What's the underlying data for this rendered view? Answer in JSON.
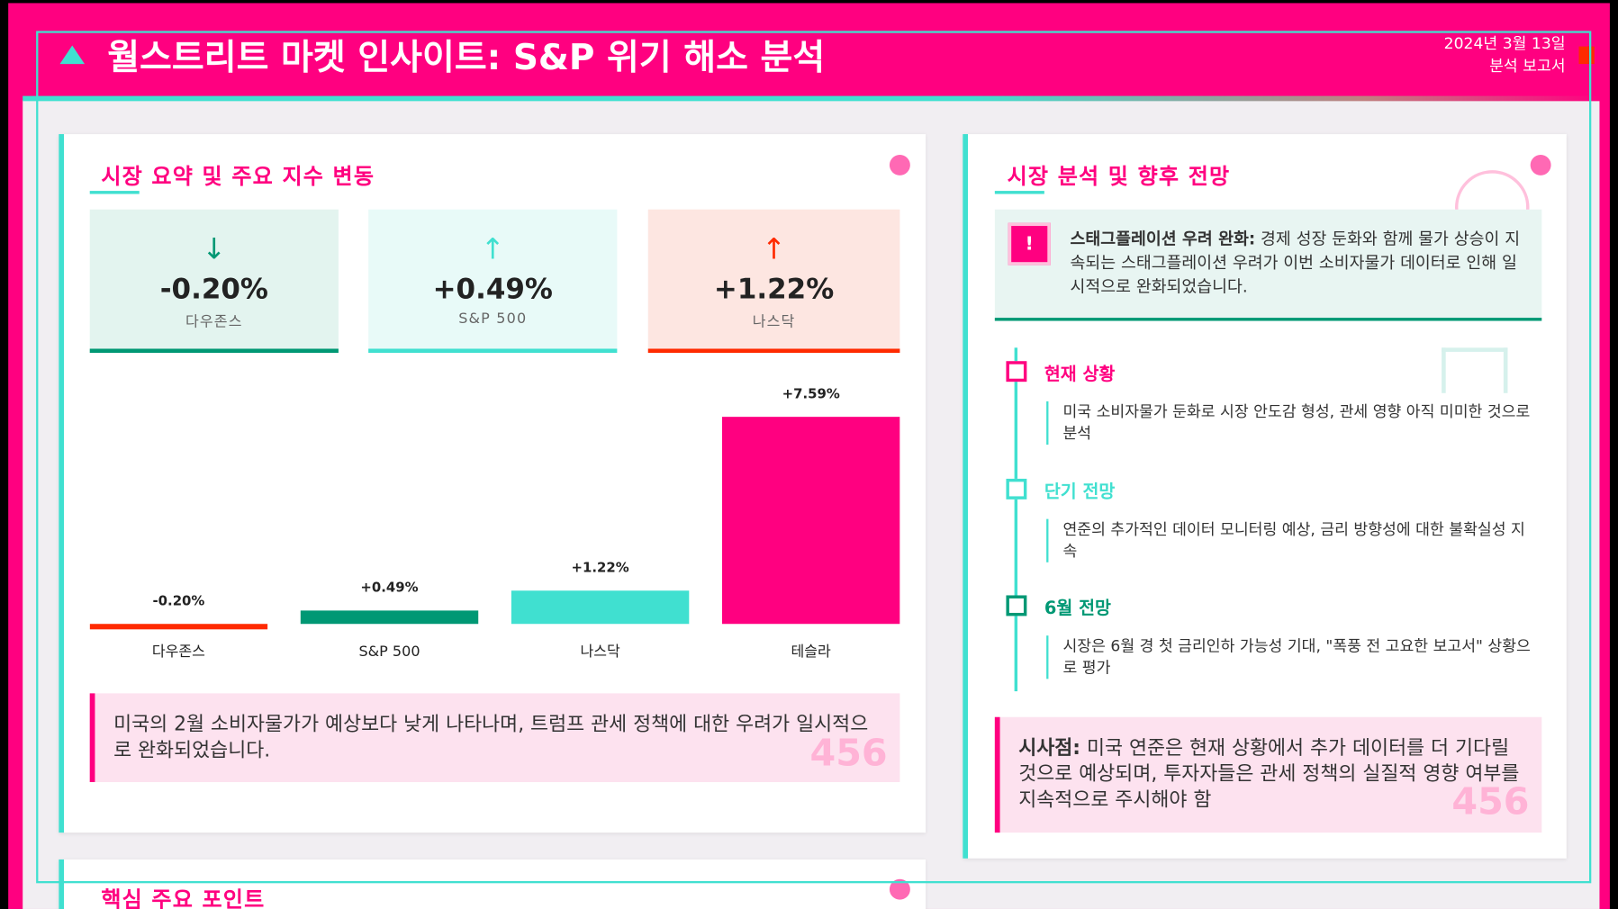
{
  "header": {
    "title": "월스트리트 마켓 인사이트: S&P 위기 해소 분석",
    "date": "2024년 3월 13일",
    "report_type": "분석 보고서"
  },
  "market_summary": {
    "title": "시장 요약 및 주요 지수 변동",
    "stats": [
      {
        "arrow": "↓",
        "value": "-0.20%",
        "label": "다우존스"
      },
      {
        "arrow": "↑",
        "value": "+0.49%",
        "label": "S&P 500"
      },
      {
        "arrow": "↑",
        "value": "+1.22%",
        "label": "나스닥"
      }
    ],
    "chart_data": {
      "type": "bar",
      "categories": [
        "다우존스",
        "S&P 500",
        "나스닥",
        "테슬라"
      ],
      "values": [
        -0.2,
        0.49,
        1.22,
        7.59
      ],
      "value_labels": [
        "-0.20%",
        "+0.49%",
        "+1.22%",
        "+7.59%"
      ],
      "colors": [
        "#ff2a00",
        "#009874",
        "#40e0d0",
        "#ff0080"
      ]
    },
    "note": "미국의 2월 소비자물가가 예상보다 낮게 나타나며, 트럼프 관세 정책에 대한 우려가 일시적으로 완화되었습니다.",
    "watermark": "456"
  },
  "outlook": {
    "title": "시장 분석 및 향후 전망",
    "alert": {
      "icon": "!",
      "heading": "스태그플레이션 우려 완화:",
      "text": "경제 성장 둔화와 함께 물가 상승이 지속되는 스태그플레이션 우려가 이번 소비자물가 데이터로 인해 일시적으로 완화되었습니다."
    },
    "timeline": [
      {
        "title": "현재 상황",
        "text": "미국 소비자물가 둔화로 시장 안도감 형성, 관세 영향 아직 미미한 것으로 분석"
      },
      {
        "title": "단기 전망",
        "text": "연준의 추가적인 데이터 모니터링 예상, 금리 방향성에 대한 불확실성 지속"
      },
      {
        "title": "6월 전망",
        "text": "시장은 6월 경 첫 금리인하 가능성 기대, \"폭풍 전 고요한 보고서\" 상황으로 평가"
      }
    ],
    "implication": {
      "heading": "시사점:",
      "text": "미국 연준은 현재 상황에서 추가 데이터를 더 기다릴 것으로 예상되며, 투자자들은 관세 정책의 실질적 영향 여부를 지속적으로 주시해야 함",
      "watermark": "456"
    }
  },
  "key_points": {
    "title": "핵심 주요 포인트"
  }
}
